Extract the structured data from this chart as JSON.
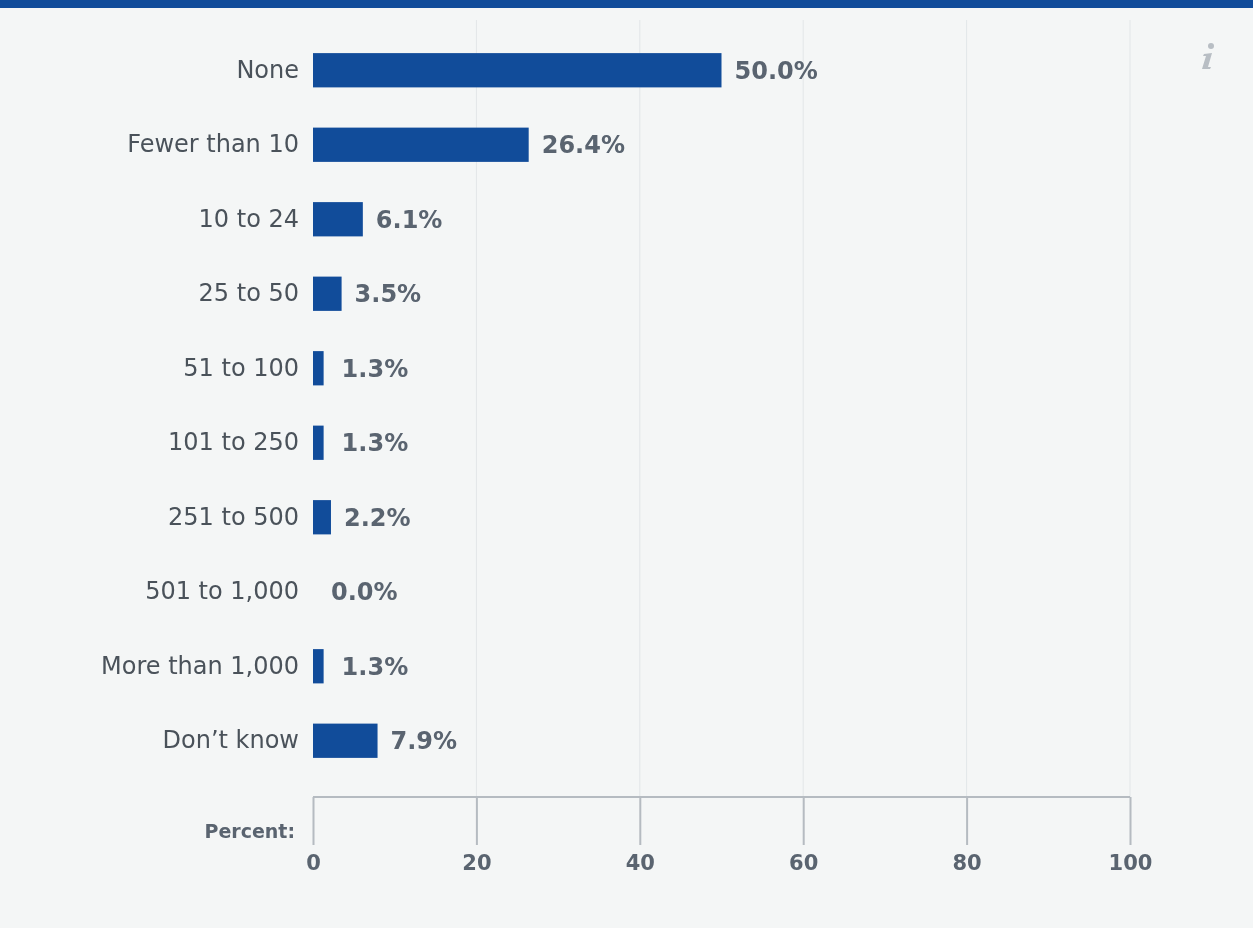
{
  "chart_data": {
    "type": "bar",
    "orientation": "horizontal",
    "xlabel": "Percent:",
    "categories": [
      "None",
      "Fewer than 10",
      "10 to 24",
      "25 to 50",
      "51 to 100",
      "101 to 250",
      "251 to 500",
      "501 to 1,000",
      "More than 1,000",
      "Don’t know"
    ],
    "values": [
      50.0,
      26.4,
      6.1,
      3.5,
      1.3,
      1.3,
      2.2,
      0.0,
      1.3,
      7.9
    ],
    "value_labels": [
      "50.0%",
      "26.4%",
      "6.1%",
      "3.5%",
      "1.3%",
      "1.3%",
      "2.2%",
      "0.0%",
      "1.3%",
      "7.9%"
    ],
    "color": "#114c9a",
    "xlim": [
      0,
      100
    ],
    "xticks": [
      0,
      20,
      40,
      60,
      80,
      100
    ],
    "grid": "x"
  }
}
